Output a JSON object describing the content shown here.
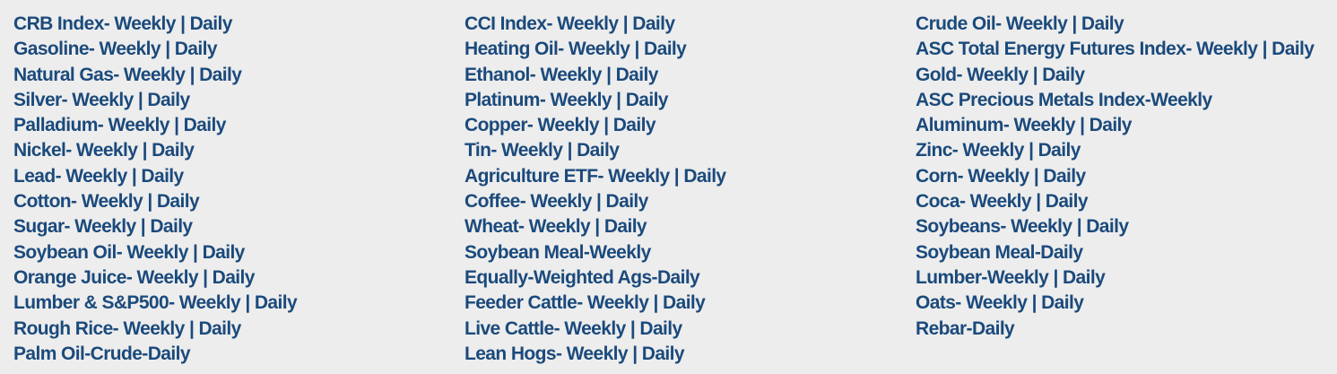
{
  "columns": [
    {
      "items": [
        {
          "name": "CRB Index",
          "links": [
            "Weekly",
            "Daily"
          ]
        },
        {
          "name": "Gasoline",
          "links": [
            "Weekly",
            "Daily"
          ]
        },
        {
          "name": "Natural Gas",
          "links": [
            "Weekly",
            "Daily"
          ]
        },
        {
          "name": "Silver",
          "links": [
            "Weekly",
            "Daily"
          ]
        },
        {
          "name": "Palladium",
          "links": [
            "Weekly",
            "Daily"
          ]
        },
        {
          "name": "Nickel",
          "links": [
            "Weekly",
            "Daily"
          ]
        },
        {
          "name": "Lead",
          "links": [
            "Weekly",
            "Daily"
          ]
        },
        {
          "name": "Cotton",
          "links": [
            "Weekly",
            "Daily"
          ]
        },
        {
          "name": "Sugar",
          "links": [
            "Weekly",
            "Daily"
          ]
        },
        {
          "name": "Soybean Oil",
          "links": [
            "Weekly",
            "Daily"
          ]
        },
        {
          "name": "Orange Juice",
          "links": [
            "Weekly",
            "Daily"
          ]
        },
        {
          "name": "Lumber & S&P500",
          "links": [
            "Weekly",
            "Daily"
          ]
        },
        {
          "name": "Rough Rice",
          "links": [
            "Weekly",
            "Daily"
          ]
        },
        {
          "name": "Palm Oil-Crude",
          "links": [
            "Daily"
          ],
          "tight": true
        }
      ]
    },
    {
      "items": [
        {
          "name": "CCI Index",
          "links": [
            "Weekly",
            "Daily"
          ]
        },
        {
          "name": "Heating Oil",
          "links": [
            "Weekly",
            "Daily"
          ]
        },
        {
          "name": "Ethanol",
          "links": [
            "Weekly",
            "Daily"
          ]
        },
        {
          "name": "Platinum",
          "links": [
            "Weekly",
            "Daily"
          ]
        },
        {
          "name": "Copper",
          "links": [
            "Weekly",
            "Daily"
          ]
        },
        {
          "name": "Tin",
          "links": [
            "Weekly",
            "Daily"
          ]
        },
        {
          "name": "Agriculture ETF",
          "links": [
            "Weekly",
            "Daily"
          ]
        },
        {
          "name": "Coffee",
          "links": [
            "Weekly",
            "Daily"
          ]
        },
        {
          "name": "Wheat",
          "links": [
            "Weekly",
            "Daily"
          ]
        },
        {
          "name": "Soybean Meal",
          "links": [
            "Weekly"
          ],
          "tight": true
        },
        {
          "name": "Equally-Weighted Ags",
          "links": [
            "Daily"
          ],
          "tight": true
        },
        {
          "name": "Feeder Cattle",
          "links": [
            "Weekly",
            "Daily"
          ]
        },
        {
          "name": "Live Cattle",
          "links": [
            "Weekly",
            "Daily"
          ]
        },
        {
          "name": "Lean Hogs",
          "links": [
            "Weekly",
            "Daily"
          ]
        }
      ]
    },
    {
      "items": [
        {
          "name": "Crude Oil",
          "links": [
            "Weekly",
            "Daily"
          ]
        },
        {
          "name": "ASC Total Energy Futures Index",
          "links": [
            "Weekly",
            "Daily"
          ]
        },
        {
          "name": "Gold",
          "links": [
            "Weekly",
            "Daily"
          ]
        },
        {
          "name": "ASC Precious Metals Index",
          "links": [
            "Weekly"
          ],
          "tight": true
        },
        {
          "name": "Aluminum",
          "links": [
            "Weekly",
            "Daily"
          ]
        },
        {
          "name": "Zinc",
          "links": [
            "Weekly",
            "Daily"
          ]
        },
        {
          "name": "Corn",
          "links": [
            "Weekly",
            "Daily"
          ]
        },
        {
          "name": "Coca",
          "links": [
            "Weekly",
            "Daily"
          ]
        },
        {
          "name": "Soybeans",
          "links": [
            "Weekly",
            "Daily"
          ]
        },
        {
          "name": "Soybean Meal",
          "links": [
            "Daily"
          ],
          "tight": true
        },
        {
          "name": "Lumber",
          "links": [
            "Weekly",
            "Daily"
          ],
          "tight": true
        },
        {
          "name": "Oats",
          "links": [
            "Weekly",
            "Daily"
          ]
        },
        {
          "name": "Rebar",
          "links": [
            "Daily"
          ],
          "tight": true
        }
      ]
    }
  ],
  "colors": {
    "link": "#1b4a7c",
    "background": "#ededed"
  }
}
